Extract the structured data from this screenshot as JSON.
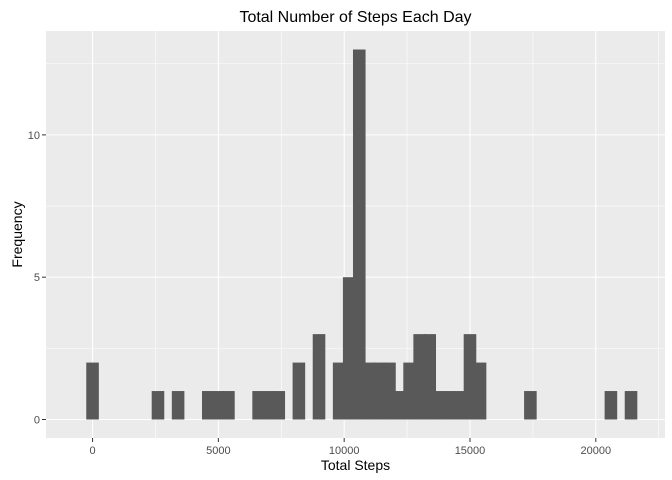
{
  "chart_data": {
    "type": "bar",
    "title": "Total Number of Steps Each Day",
    "xlabel": "Total Steps",
    "ylabel": "Frequency",
    "xlim": [
      -1850,
      22750
    ],
    "ylim": [
      -0.65,
      13.65
    ],
    "bin_width": 500,
    "x_ticks": [
      {
        "value": 0,
        "label": "0"
      },
      {
        "value": 5000,
        "label": "5000"
      },
      {
        "value": 10000,
        "label": "10000"
      },
      {
        "value": 15000,
        "label": "15000"
      },
      {
        "value": 20000,
        "label": "20000"
      }
    ],
    "y_ticks": [
      {
        "value": 0,
        "label": "0"
      },
      {
        "value": 5,
        "label": "5"
      },
      {
        "value": 10,
        "label": "10"
      }
    ],
    "bins": [
      {
        "x": 0,
        "count": 2
      },
      {
        "x": 2600,
        "count": 1
      },
      {
        "x": 3400,
        "count": 1
      },
      {
        "x": 4600,
        "count": 1
      },
      {
        "x": 5000,
        "count": 1
      },
      {
        "x": 5400,
        "count": 1
      },
      {
        "x": 6600,
        "count": 1
      },
      {
        "x": 7000,
        "count": 1
      },
      {
        "x": 7400,
        "count": 1
      },
      {
        "x": 8200,
        "count": 2
      },
      {
        "x": 9000,
        "count": 3
      },
      {
        "x": 9800,
        "count": 2
      },
      {
        "x": 10200,
        "count": 5
      },
      {
        "x": 10600,
        "count": 13
      },
      {
        "x": 11000,
        "count": 2
      },
      {
        "x": 11400,
        "count": 2
      },
      {
        "x": 11800,
        "count": 2
      },
      {
        "x": 12200,
        "count": 1
      },
      {
        "x": 12600,
        "count": 2
      },
      {
        "x": 13000,
        "count": 3
      },
      {
        "x": 13400,
        "count": 3
      },
      {
        "x": 13800,
        "count": 1
      },
      {
        "x": 14200,
        "count": 1
      },
      {
        "x": 14600,
        "count": 1
      },
      {
        "x": 15000,
        "count": 3
      },
      {
        "x": 15400,
        "count": 2
      },
      {
        "x": 17400,
        "count": 1
      },
      {
        "x": 20600,
        "count": 1
      },
      {
        "x": 21400,
        "count": 1
      }
    ],
    "grid": true,
    "colors": {
      "panel": "#ebebeb",
      "grid_major": "#ffffff",
      "bar": "#595959",
      "tick": "#333333"
    }
  }
}
